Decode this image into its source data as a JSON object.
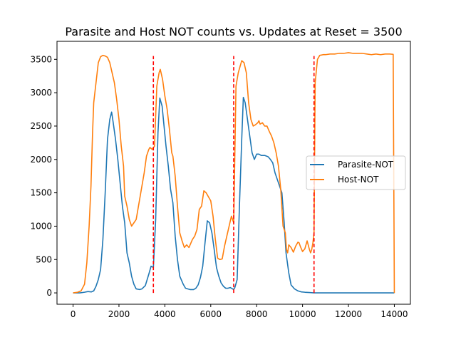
{
  "chart_data": {
    "type": "line",
    "title": "Parasite and Host NOT counts vs. Updates at Reset = 3500",
    "xlabel": "",
    "ylabel": "",
    "xlim": [
      -700,
      14700
    ],
    "ylim": [
      -170,
      3770
    ],
    "x_ticks": [
      0,
      2000,
      4000,
      6000,
      8000,
      10000,
      12000,
      14000
    ],
    "y_ticks": [
      0,
      500,
      1000,
      1500,
      2000,
      2500,
      3000,
      3500
    ],
    "legend_position": "center-right",
    "grid": false,
    "reset_lines": {
      "x": [
        3500,
        7000,
        10500
      ],
      "y_range": [
        0,
        3550
      ],
      "color": "#ff0000",
      "style": "dashed"
    },
    "series": [
      {
        "name": "Parasite-NOT",
        "color": "#1f77b4",
        "points": [
          [
            0,
            0
          ],
          [
            300,
            0
          ],
          [
            500,
            10
          ],
          [
            650,
            20
          ],
          [
            800,
            15
          ],
          [
            900,
            30
          ],
          [
            1000,
            100
          ],
          [
            1100,
            200
          ],
          [
            1200,
            350
          ],
          [
            1300,
            800
          ],
          [
            1400,
            1500
          ],
          [
            1500,
            2300
          ],
          [
            1600,
            2600
          ],
          [
            1680,
            2710
          ],
          [
            1750,
            2550
          ],
          [
            1850,
            2300
          ],
          [
            1950,
            2000
          ],
          [
            2050,
            1650
          ],
          [
            2150,
            1300
          ],
          [
            2250,
            1050
          ],
          [
            2350,
            600
          ],
          [
            2450,
            450
          ],
          [
            2550,
            250
          ],
          [
            2650,
            130
          ],
          [
            2750,
            60
          ],
          [
            2900,
            50
          ],
          [
            3000,
            60
          ],
          [
            3150,
            110
          ],
          [
            3300,
            280
          ],
          [
            3400,
            400
          ],
          [
            3500,
            380
          ],
          [
            3600,
            1100
          ],
          [
            3700,
            2400
          ],
          [
            3780,
            2920
          ],
          [
            3880,
            2800
          ],
          [
            3950,
            2550
          ],
          [
            4050,
            2200
          ],
          [
            4150,
            1900
          ],
          [
            4250,
            1550
          ],
          [
            4350,
            1350
          ],
          [
            4450,
            850
          ],
          [
            4550,
            500
          ],
          [
            4650,
            250
          ],
          [
            4800,
            130
          ],
          [
            4900,
            70
          ],
          [
            5000,
            60
          ],
          [
            5100,
            50
          ],
          [
            5250,
            50
          ],
          [
            5350,
            70
          ],
          [
            5450,
            120
          ],
          [
            5550,
            230
          ],
          [
            5650,
            400
          ],
          [
            5750,
            750
          ],
          [
            5850,
            1080
          ],
          [
            5950,
            1050
          ],
          [
            6050,
            900
          ],
          [
            6150,
            650
          ],
          [
            6250,
            380
          ],
          [
            6350,
            250
          ],
          [
            6450,
            150
          ],
          [
            6550,
            100
          ],
          [
            6650,
            70
          ],
          [
            6750,
            70
          ],
          [
            6850,
            80
          ],
          [
            6950,
            60
          ],
          [
            7000,
            50
          ],
          [
            7050,
            80
          ],
          [
            7150,
            200
          ],
          [
            7250,
            1300
          ],
          [
            7350,
            2300
          ],
          [
            7420,
            2930
          ],
          [
            7500,
            2850
          ],
          [
            7580,
            2650
          ],
          [
            7700,
            2350
          ],
          [
            7800,
            2100
          ],
          [
            7900,
            2000
          ],
          [
            8000,
            2080
          ],
          [
            8100,
            2080
          ],
          [
            8200,
            2060
          ],
          [
            8350,
            2060
          ],
          [
            8500,
            2040
          ],
          [
            8600,
            2000
          ],
          [
            8700,
            1950
          ],
          [
            8800,
            1800
          ],
          [
            8900,
            1700
          ],
          [
            9000,
            1600
          ],
          [
            9100,
            1500
          ],
          [
            9200,
            1050
          ],
          [
            9280,
            600
          ],
          [
            9400,
            300
          ],
          [
            9500,
            120
          ],
          [
            9650,
            60
          ],
          [
            9800,
            30
          ],
          [
            9950,
            15
          ],
          [
            10100,
            10
          ],
          [
            10300,
            5
          ],
          [
            10500,
            0
          ],
          [
            11000,
            0
          ],
          [
            12000,
            0
          ],
          [
            13000,
            0
          ],
          [
            14000,
            0
          ]
        ]
      },
      {
        "name": "Host-NOT",
        "color": "#ff7f0e",
        "points": [
          [
            0,
            0
          ],
          [
            200,
            10
          ],
          [
            350,
            30
          ],
          [
            500,
            130
          ],
          [
            600,
            450
          ],
          [
            700,
            1000
          ],
          [
            780,
            1600
          ],
          [
            850,
            2400
          ],
          [
            900,
            2850
          ],
          [
            1000,
            3150
          ],
          [
            1100,
            3450
          ],
          [
            1200,
            3540
          ],
          [
            1300,
            3560
          ],
          [
            1400,
            3550
          ],
          [
            1500,
            3530
          ],
          [
            1600,
            3450
          ],
          [
            1700,
            3300
          ],
          [
            1800,
            3150
          ],
          [
            1900,
            2900
          ],
          [
            2000,
            2600
          ],
          [
            2100,
            2200
          ],
          [
            2200,
            1900
          ],
          [
            2250,
            1450
          ],
          [
            2350,
            1300
          ],
          [
            2450,
            1100
          ],
          [
            2550,
            1000
          ],
          [
            2650,
            1050
          ],
          [
            2750,
            1100
          ],
          [
            2850,
            1300
          ],
          [
            2950,
            1500
          ],
          [
            3100,
            1800
          ],
          [
            3200,
            2050
          ],
          [
            3300,
            2150
          ],
          [
            3350,
            2180
          ],
          [
            3450,
            2150
          ],
          [
            3550,
            2200
          ],
          [
            3650,
            3100
          ],
          [
            3750,
            3300
          ],
          [
            3800,
            3350
          ],
          [
            3900,
            3200
          ],
          [
            4000,
            2950
          ],
          [
            4100,
            2750
          ],
          [
            4200,
            2450
          ],
          [
            4300,
            2100
          ],
          [
            4350,
            2050
          ],
          [
            4450,
            1750
          ],
          [
            4550,
            1300
          ],
          [
            4650,
            900
          ],
          [
            4750,
            780
          ],
          [
            4850,
            680
          ],
          [
            4950,
            720
          ],
          [
            5050,
            680
          ],
          [
            5200,
            800
          ],
          [
            5300,
            850
          ],
          [
            5400,
            950
          ],
          [
            5500,
            1250
          ],
          [
            5600,
            1300
          ],
          [
            5700,
            1530
          ],
          [
            5800,
            1500
          ],
          [
            5900,
            1440
          ],
          [
            6000,
            1380
          ],
          [
            6100,
            1150
          ],
          [
            6200,
            800
          ],
          [
            6300,
            520
          ],
          [
            6400,
            500
          ],
          [
            6500,
            510
          ],
          [
            6600,
            700
          ],
          [
            6700,
            850
          ],
          [
            6800,
            1000
          ],
          [
            6900,
            1150
          ],
          [
            6950,
            1100
          ],
          [
            7000,
            1050
          ],
          [
            7100,
            3100
          ],
          [
            7200,
            3300
          ],
          [
            7300,
            3420
          ],
          [
            7350,
            3480
          ],
          [
            7450,
            3450
          ],
          [
            7550,
            3300
          ],
          [
            7650,
            2850
          ],
          [
            7750,
            2600
          ],
          [
            7850,
            2500
          ],
          [
            7950,
            2520
          ],
          [
            8050,
            2550
          ],
          [
            8100,
            2580
          ],
          [
            8150,
            2530
          ],
          [
            8250,
            2550
          ],
          [
            8350,
            2500
          ],
          [
            8450,
            2500
          ],
          [
            8550,
            2420
          ],
          [
            8650,
            2350
          ],
          [
            8750,
            2250
          ],
          [
            8850,
            2100
          ],
          [
            8950,
            1900
          ],
          [
            9050,
            1550
          ],
          [
            9150,
            1000
          ],
          [
            9250,
            900
          ],
          [
            9300,
            650
          ],
          [
            9350,
            600
          ],
          [
            9400,
            720
          ],
          [
            9500,
            680
          ],
          [
            9600,
            610
          ],
          [
            9700,
            700
          ],
          [
            9800,
            760
          ],
          [
            9850,
            750
          ],
          [
            9900,
            700
          ],
          [
            10000,
            620
          ],
          [
            10100,
            660
          ],
          [
            10200,
            780
          ],
          [
            10300,
            650
          ],
          [
            10350,
            600
          ],
          [
            10400,
            650
          ],
          [
            10450,
            750
          ],
          [
            10500,
            900
          ],
          [
            10550,
            3150
          ],
          [
            10650,
            3500
          ],
          [
            10750,
            3560
          ],
          [
            10900,
            3570
          ],
          [
            11000,
            3570
          ],
          [
            11200,
            3580
          ],
          [
            11400,
            3580
          ],
          [
            11600,
            3590
          ],
          [
            11800,
            3590
          ],
          [
            12000,
            3600
          ],
          [
            12200,
            3590
          ],
          [
            12400,
            3590
          ],
          [
            12600,
            3590
          ],
          [
            12800,
            3580
          ],
          [
            13000,
            3570
          ],
          [
            13200,
            3580
          ],
          [
            13400,
            3570
          ],
          [
            13600,
            3580
          ],
          [
            13800,
            3580
          ],
          [
            13950,
            3575
          ],
          [
            14000,
            0
          ]
        ]
      }
    ]
  }
}
